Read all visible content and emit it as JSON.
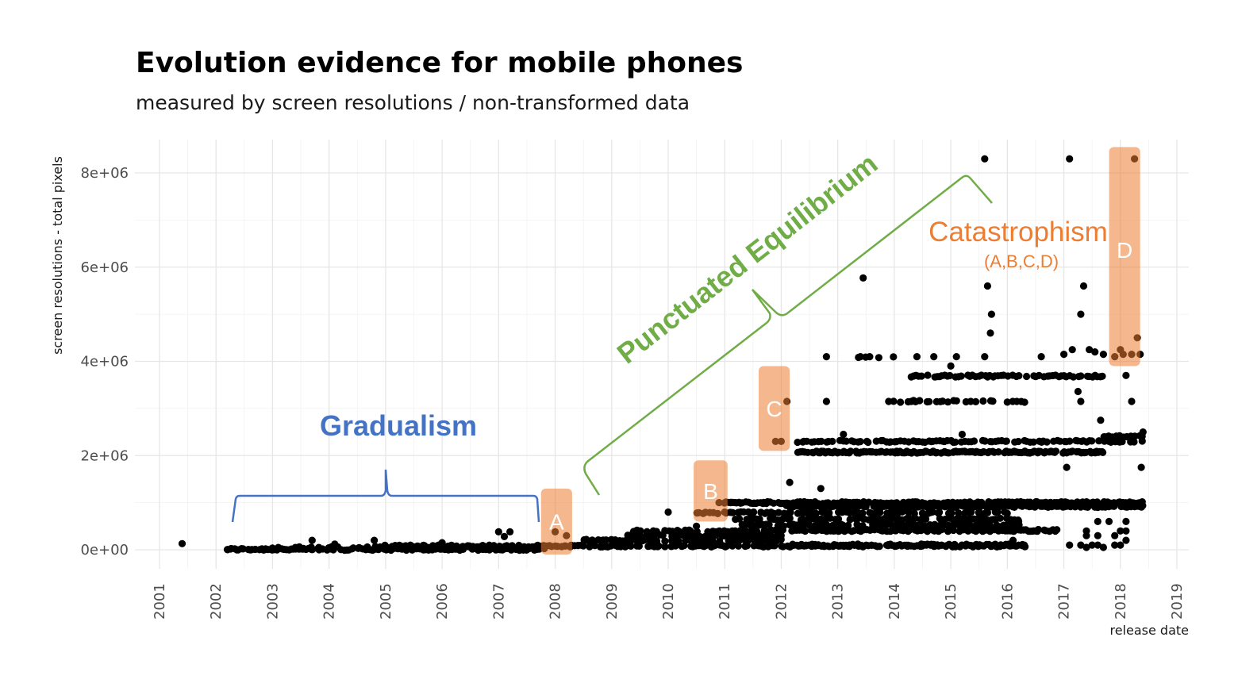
{
  "colors": {
    "gradualism": "#4472c4",
    "punctuated": "#70ad47",
    "catastrophism": "#ed7d31",
    "box_fill": "#ed7d31",
    "points": "#000000"
  },
  "chart_data": {
    "type": "scatter",
    "title": "Evolution evidence for mobile phones",
    "subtitle": "measured by screen resolutions / non-transformed data",
    "xlabel": "release date",
    "ylabel": "screen resolutions - total pixels",
    "xlim": [
      2000.6,
      2019.3
    ],
    "ylim": [
      -400000,
      8700000
    ],
    "x_ticks": [
      "2001",
      "2002",
      "2003",
      "2004",
      "2005",
      "2006",
      "2007",
      "2008",
      "2009",
      "2010",
      "2011",
      "2012",
      "2013",
      "2014",
      "2015",
      "2016",
      "2017",
      "2018",
      "2019"
    ],
    "y_ticks": [
      {
        "value": 0,
        "label": "0e+00"
      },
      {
        "value": 2000000,
        "label": "2e+06"
      },
      {
        "value": 4000000,
        "label": "4e+06"
      },
      {
        "value": 6000000,
        "label": "6e+06"
      },
      {
        "value": 8000000,
        "label": "8e+06"
      }
    ],
    "grid": true,
    "series": [
      {
        "bands": [
          {
            "value": 10000,
            "from": 2002.2,
            "to": 2007.8,
            "step": 0.04
          },
          {
            "value": 50000,
            "from": 2003.0,
            "to": 2007.8,
            "step": 0.12
          },
          {
            "value": 80000,
            "from": 2005.0,
            "to": 2016.3,
            "step": 0.05
          },
          {
            "value": 100000,
            "from": 2012.2,
            "to": 2016.3,
            "step": 0.06
          },
          {
            "value": 200000,
            "from": 2008.5,
            "to": 2012.0,
            "step": 0.05
          },
          {
            "value": 300000,
            "from": 2009.3,
            "to": 2012.0,
            "step": 0.05
          },
          {
            "value": 400000,
            "from": 2009.3,
            "to": 2012.0,
            "step": 0.07
          },
          {
            "value": 410000,
            "from": 2012.0,
            "to": 2016.9,
            "step": 0.04
          },
          {
            "value": 520000,
            "from": 2011.2,
            "to": 2016.2,
            "step": 0.05
          },
          {
            "value": 650000,
            "from": 2011.2,
            "to": 2016.2,
            "step": 0.06
          },
          {
            "value": 786000,
            "from": 2010.5,
            "to": 2016.3,
            "step": 0.06
          },
          {
            "value": 921000,
            "from": 2012.1,
            "to": 2018.4,
            "step": 0.03
          },
          {
            "value": 1000000,
            "from": 2011.0,
            "to": 2018.4,
            "step": 0.035
          },
          {
            "value": 2073600,
            "from": 2012.3,
            "to": 2017.7,
            "step": 0.03
          },
          {
            "value": 2300000,
            "from": 2012.3,
            "to": 2018.4,
            "step": 0.05
          },
          {
            "value": 2400000,
            "from": 2017.7,
            "to": 2018.4,
            "step": 0.04
          },
          {
            "value": 3150000,
            "from": 2014.0,
            "to": 2016.4,
            "step": 0.08
          },
          {
            "value": 3686400,
            "from": 2014.3,
            "to": 2017.7,
            "step": 0.05
          },
          {
            "value": 4096000,
            "from": 2013.4,
            "to": 2014.0,
            "step": 0.1
          }
        ],
        "points": [
          [
            2001.4,
            130000
          ],
          [
            2002.2,
            5000
          ],
          [
            2003.7,
            200000
          ],
          [
            2004.1,
            120000
          ],
          [
            2004.8,
            200000
          ],
          [
            2006.0,
            150000
          ],
          [
            2007.0,
            380000
          ],
          [
            2007.1,
            280000
          ],
          [
            2007.2,
            380000
          ],
          [
            2008.0,
            380000
          ],
          [
            2008.2,
            300000
          ],
          [
            2010.0,
            800000
          ],
          [
            2010.5,
            500000
          ],
          [
            2010.9,
            1000000
          ],
          [
            2011.0,
            800000
          ],
          [
            2011.1,
            1000000
          ],
          [
            2011.4,
            620000
          ],
          [
            2011.9,
            2300000
          ],
          [
            2012.1,
            3150000
          ],
          [
            2012.0,
            2300000
          ],
          [
            2012.15,
            1430000
          ],
          [
            2012.4,
            2300000
          ],
          [
            2012.7,
            1300000
          ],
          [
            2012.8,
            4100000
          ],
          [
            2012.8,
            3150000
          ],
          [
            2013.1,
            2450000
          ],
          [
            2013.4,
            4100000
          ],
          [
            2013.45,
            5770000
          ],
          [
            2013.9,
            3150000
          ],
          [
            2014.3,
            3150000
          ],
          [
            2014.4,
            4100000
          ],
          [
            2014.7,
            4100000
          ],
          [
            2015.0,
            3900000
          ],
          [
            2015.1,
            4100000
          ],
          [
            2015.2,
            2450000
          ],
          [
            2015.6,
            8300000
          ],
          [
            2015.65,
            5600000
          ],
          [
            2015.7,
            4600000
          ],
          [
            2015.72,
            5000000
          ],
          [
            2015.6,
            4100000
          ],
          [
            2016.6,
            4100000
          ],
          [
            2017.0,
            4150000
          ],
          [
            2017.05,
            1750000
          ],
          [
            2017.1,
            8300000
          ],
          [
            2017.15,
            4250000
          ],
          [
            2017.25,
            3360000
          ],
          [
            2017.3,
            3150000
          ],
          [
            2017.3,
            5000000
          ],
          [
            2017.35,
            5600000
          ],
          [
            2017.45,
            4250000
          ],
          [
            2017.55,
            4200000
          ],
          [
            2017.65,
            2750000
          ],
          [
            2017.7,
            4150000
          ],
          [
            2017.8,
            2300000
          ],
          [
            2017.9,
            4100000
          ],
          [
            2018.0,
            4250000
          ],
          [
            2018.05,
            4150000
          ],
          [
            2018.1,
            3700000
          ],
          [
            2018.2,
            4150000
          ],
          [
            2018.2,
            3150000
          ],
          [
            2018.25,
            8300000
          ],
          [
            2018.3,
            4500000
          ],
          [
            2018.35,
            4150000
          ],
          [
            2018.37,
            1750000
          ],
          [
            2018.0,
            2400000
          ],
          [
            2018.4,
            2500000
          ],
          [
            2017.1,
            100000
          ],
          [
            2017.3,
            100000
          ],
          [
            2017.4,
            50000
          ],
          [
            2017.5,
            100000
          ],
          [
            2017.6,
            100000
          ],
          [
            2017.7,
            50000
          ],
          [
            2017.9,
            100000
          ],
          [
            2018.0,
            100000
          ],
          [
            2018.1,
            200000
          ],
          [
            2017.4,
            300000
          ],
          [
            2017.6,
            300000
          ],
          [
            2017.9,
            300000
          ],
          [
            2018.0,
            400000
          ],
          [
            2018.1,
            400000
          ],
          [
            2017.6,
            600000
          ],
          [
            2017.8,
            600000
          ],
          [
            2018.1,
            600000
          ],
          [
            2017.4,
            400000
          ],
          [
            2016.1,
            200000
          ],
          [
            2016.3,
            100000
          ],
          [
            2016.5,
            400000
          ],
          [
            2016.2,
            600000
          ]
        ]
      }
    ],
    "annotations": {
      "gradualism": {
        "label": "Gradualism"
      },
      "punctuated": {
        "label": "Punctuated Equilibrium"
      },
      "catastrophism": {
        "label": "Catastrophism",
        "sub": "(A,B,C,D)"
      },
      "boxes": [
        {
          "label": "A",
          "x": [
            2007.75,
            2008.3
          ],
          "y": [
            -100000,
            1300000
          ]
        },
        {
          "label": "B",
          "x": [
            2010.45,
            2011.05
          ],
          "y": [
            600000,
            1900000
          ]
        },
        {
          "label": "C",
          "x": [
            2011.6,
            2012.15
          ],
          "y": [
            2100000,
            3900000
          ]
        },
        {
          "label": "D",
          "x": [
            2017.8,
            2018.35
          ],
          "y": [
            3900000,
            8550000
          ]
        }
      ]
    }
  }
}
